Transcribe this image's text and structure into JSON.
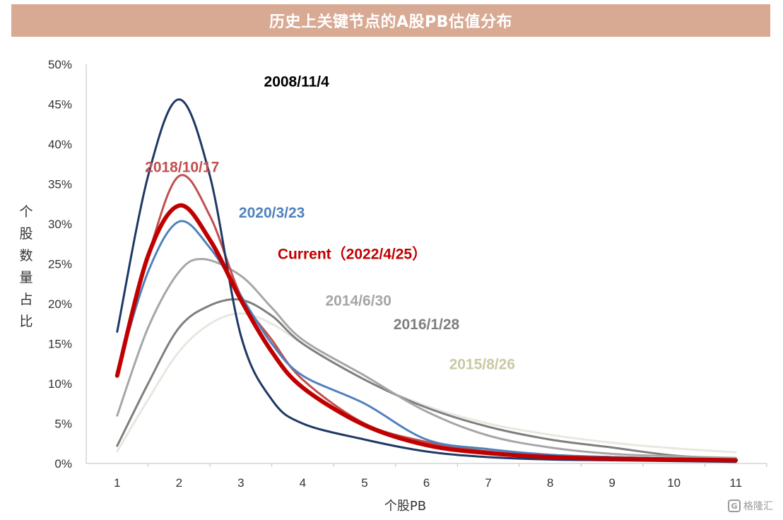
{
  "chart_data": {
    "type": "line",
    "title": "历史上关键节点的A股PB估值分布",
    "xlabel": "个股PB",
    "ylabel": "个股数量占比",
    "x": [
      1,
      2,
      3,
      4,
      5,
      6,
      7,
      8,
      9,
      10,
      11
    ],
    "xlim": [
      0.5,
      11.5
    ],
    "ylim": [
      0,
      50
    ],
    "y_ticks": [
      "0%",
      "5%",
      "10%",
      "15%",
      "20%",
      "25%",
      "30%",
      "35%",
      "40%",
      "45%",
      "50%"
    ],
    "x_ticks": [
      "1",
      "2",
      "3",
      "4",
      "5",
      "6",
      "7",
      "8",
      "9",
      "10",
      "11"
    ],
    "grid": false,
    "series": [
      {
        "name": "2015/8/26",
        "color": "#e8e8e0",
        "points": [
          [
            1,
            1.5
          ],
          [
            1.5,
            8
          ],
          [
            2,
            14
          ],
          [
            2.5,
            17.5
          ],
          [
            3,
            18.8
          ],
          [
            3.5,
            17.5
          ],
          [
            4,
            15
          ],
          [
            5,
            10.5
          ],
          [
            6,
            7.2
          ],
          [
            7,
            5
          ],
          [
            8,
            3.6
          ],
          [
            9,
            2.6
          ],
          [
            10,
            1.9
          ],
          [
            11,
            1.4
          ]
        ]
      },
      {
        "name": "2016/1/28",
        "color": "#7f7f7f",
        "points": [
          [
            1,
            2.2
          ],
          [
            1.5,
            10
          ],
          [
            2,
            17
          ],
          [
            2.5,
            19.8
          ],
          [
            3,
            20.5
          ],
          [
            3.5,
            18.5
          ],
          [
            4,
            15
          ],
          [
            5,
            10.5
          ],
          [
            6,
            7
          ],
          [
            7,
            4.6
          ],
          [
            8,
            3
          ],
          [
            9,
            2
          ],
          [
            10,
            1
          ],
          [
            11,
            0.6
          ]
        ]
      },
      {
        "name": "2014/6/30",
        "color": "#a6a6a6",
        "points": [
          [
            1,
            6
          ],
          [
            1.5,
            17
          ],
          [
            2,
            24
          ],
          [
            2.4,
            25.6
          ],
          [
            3,
            23.5
          ],
          [
            3.5,
            19.5
          ],
          [
            4,
            15.5
          ],
          [
            5,
            11
          ],
          [
            6,
            6.5
          ],
          [
            7,
            3.5
          ],
          [
            8,
            2
          ],
          [
            9,
            1.2
          ],
          [
            10,
            0.9
          ],
          [
            11,
            0.7
          ]
        ]
      },
      {
        "name": "2018/10/17",
        "color": "#c0504d",
        "points": [
          [
            1,
            11.5
          ],
          [
            1.5,
            26
          ],
          [
            2,
            36
          ],
          [
            2.5,
            31
          ],
          [
            3,
            21
          ],
          [
            3.5,
            15.5
          ],
          [
            4,
            10.5
          ],
          [
            5,
            5
          ],
          [
            6,
            2.7
          ],
          [
            7,
            1.5
          ],
          [
            8,
            1
          ],
          [
            9,
            0.8
          ],
          [
            10,
            0.6
          ],
          [
            11,
            0.5
          ]
        ]
      },
      {
        "name": "2020/3/23",
        "color": "#4f81bd",
        "points": [
          [
            1,
            11.5
          ],
          [
            1.5,
            24
          ],
          [
            2,
            30.3
          ],
          [
            2.5,
            27
          ],
          [
            3,
            21
          ],
          [
            3.5,
            15
          ],
          [
            4,
            11
          ],
          [
            5,
            7.5
          ],
          [
            6,
            3
          ],
          [
            7,
            1.8
          ],
          [
            8,
            1.1
          ],
          [
            9,
            0.8
          ],
          [
            10,
            0.6
          ],
          [
            11,
            0.5
          ]
        ]
      },
      {
        "name": "2008/11/4",
        "color": "#1f3864",
        "points": [
          [
            1,
            16.5
          ],
          [
            1.5,
            36
          ],
          [
            2,
            45.6
          ],
          [
            2.5,
            36
          ],
          [
            3,
            16
          ],
          [
            3.5,
            8
          ],
          [
            4,
            5
          ],
          [
            5,
            3
          ],
          [
            6,
            1.5
          ],
          [
            7,
            0.8
          ],
          [
            8,
            0.5
          ],
          [
            9,
            0.4
          ],
          [
            10,
            0.3
          ],
          [
            11,
            0.2
          ]
        ]
      },
      {
        "name": "Current（2022/4/25）",
        "color": "#c00000",
        "width": 6,
        "points": [
          [
            1,
            11
          ],
          [
            1.5,
            26
          ],
          [
            2,
            32.3
          ],
          [
            2.5,
            28
          ],
          [
            3,
            20.5
          ],
          [
            3.5,
            14
          ],
          [
            4,
            9.5
          ],
          [
            5,
            4.8
          ],
          [
            6,
            2.3
          ],
          [
            7,
            1.3
          ],
          [
            8,
            0.8
          ],
          [
            9,
            0.6
          ],
          [
            10,
            0.5
          ],
          [
            11,
            0.4
          ]
        ]
      }
    ],
    "labels": [
      {
        "text": "2008/11/4",
        "color": "#000000",
        "x": 3.9,
        "y": 47.2
      },
      {
        "text": "2018/10/17",
        "color": "#c0504d",
        "x": 2.05,
        "y": 36.5
      },
      {
        "text": "2020/3/23",
        "color": "#4f81bd",
        "x": 3.5,
        "y": 30.8
      },
      {
        "text": "Current（2022/4/25）",
        "color": "#c00000",
        "x": 4.8,
        "y": 25.6
      },
      {
        "text": "2014/6/30",
        "color": "#a6a6a6",
        "x": 4.9,
        "y": 19.8
      },
      {
        "text": "2016/1/28",
        "color": "#7f7f7f",
        "x": 6.0,
        "y": 16.8
      },
      {
        "text": "2015/8/26",
        "color": "#c9c9a3",
        "x": 6.9,
        "y": 11.8
      }
    ]
  },
  "watermark": {
    "icon": "G",
    "text": "格隆汇"
  }
}
